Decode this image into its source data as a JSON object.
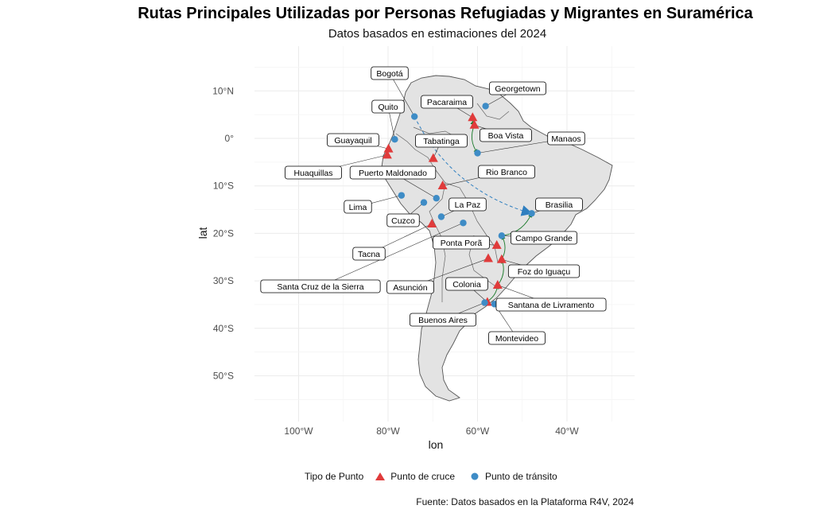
{
  "header": {
    "title": "Rutas Principales Utilizadas por Personas Refugiadas y Migrantes en Suramérica",
    "subtitle": "Datos basados en estimaciones del 2024"
  },
  "caption": "Fuente: Datos basados en la Plataforma R4V, 2024",
  "legend": {
    "title": "Tipo de Punto",
    "items": [
      {
        "label": "Punto de cruce",
        "shape": "triangle",
        "color": "#e03b3b"
      },
      {
        "label": "Punto de tránsito",
        "shape": "circle",
        "color": "#3e8cc6"
      }
    ]
  },
  "axes": {
    "xlabel": "lon",
    "ylabel": "lat",
    "xlim": [
      -110,
      -25
    ],
    "ylim": [
      -60,
      20
    ],
    "x_ticks": [
      {
        "value": -100,
        "label": "100°W"
      },
      {
        "value": -80,
        "label": "80°W"
      },
      {
        "value": -60,
        "label": "60°W"
      },
      {
        "value": -40,
        "label": "40°W"
      }
    ],
    "y_ticks": [
      {
        "value": 10,
        "label": "10°N"
      },
      {
        "value": 0,
        "label": "0°"
      },
      {
        "value": -10,
        "label": "10°S"
      },
      {
        "value": -20,
        "label": "20°S"
      },
      {
        "value": -30,
        "label": "30°S"
      },
      {
        "value": -40,
        "label": "40°S"
      },
      {
        "value": -50,
        "label": "50°S"
      }
    ],
    "grid": true
  },
  "colors": {
    "crossing": "#e03b3b",
    "transit": "#3e8cc6",
    "route_green": "#1a7a2a",
    "route_blue": "#2f7fc0",
    "land": "#e3e3e3",
    "border": "#555555"
  },
  "chart_data": {
    "type": "map",
    "points": [
      {
        "name": "Bogotá",
        "lon": -74.1,
        "lat": 4.6,
        "type": "transit"
      },
      {
        "name": "Quito",
        "lon": -78.5,
        "lat": -0.2,
        "type": "transit"
      },
      {
        "name": "Guayaquil",
        "lon": -79.9,
        "lat": -2.2,
        "type": "crossing"
      },
      {
        "name": "Huaquillas",
        "lon": -80.2,
        "lat": -3.5,
        "type": "crossing"
      },
      {
        "name": "Tabatinga",
        "lon": -69.9,
        "lat": -4.2,
        "type": "crossing"
      },
      {
        "name": "Puerto Maldonado",
        "lon": -69.2,
        "lat": -12.6,
        "type": "transit"
      },
      {
        "name": "Rio Branco",
        "lon": -67.8,
        "lat": -9.97,
        "type": "crossing"
      },
      {
        "name": "Lima",
        "lon": -77.0,
        "lat": -12.0,
        "type": "transit"
      },
      {
        "name": "Cuzco",
        "lon": -72.0,
        "lat": -13.5,
        "type": "transit"
      },
      {
        "name": "La Paz",
        "lon": -68.1,
        "lat": -16.5,
        "type": "transit"
      },
      {
        "name": "Tacna",
        "lon": -70.2,
        "lat": -18.0,
        "type": "crossing"
      },
      {
        "name": "Santa Cruz de la Sierra",
        "lon": -63.2,
        "lat": -17.8,
        "type": "transit"
      },
      {
        "name": "Pacaraima",
        "lon": -61.1,
        "lat": 4.4,
        "type": "crossing"
      },
      {
        "name": "Georgetown",
        "lon": -58.2,
        "lat": 6.8,
        "type": "transit"
      },
      {
        "name": "Boa Vista",
        "lon": -60.7,
        "lat": 2.8,
        "type": "crossing"
      },
      {
        "name": "Manaos",
        "lon": -60.0,
        "lat": -3.1,
        "type": "transit"
      },
      {
        "name": "Brasilia",
        "lon": -47.9,
        "lat": -15.8,
        "type": "transit"
      },
      {
        "name": "Campo Grande",
        "lon": -54.6,
        "lat": -20.5,
        "type": "transit"
      },
      {
        "name": "Ponta Porã",
        "lon": -55.7,
        "lat": -22.5,
        "type": "crossing"
      },
      {
        "name": "Asunción",
        "lon": -57.6,
        "lat": -25.3,
        "type": "crossing"
      },
      {
        "name": "Foz do Iguaçu",
        "lon": -54.6,
        "lat": -25.5,
        "type": "crossing"
      },
      {
        "name": "Colonia",
        "lon": -57.8,
        "lat": -34.5,
        "type": "crossing"
      },
      {
        "name": "Santana de Livramento",
        "lon": -55.5,
        "lat": -30.9,
        "type": "crossing"
      },
      {
        "name": "Buenos Aires",
        "lon": -58.4,
        "lat": -34.6,
        "type": "transit"
      },
      {
        "name": "Montevideo",
        "lon": -56.2,
        "lat": -34.9,
        "type": "transit"
      }
    ],
    "routes": [
      {
        "from": "Pacaraima",
        "to": "Boa Vista",
        "style": "solid-green"
      },
      {
        "from": "Boa Vista",
        "to": "Manaos",
        "style": "solid-green"
      },
      {
        "from": "Campo Grande",
        "to": "Brasilia",
        "style": "solid-green"
      },
      {
        "from": "Foz do Iguaçu",
        "to": "Campo Grande",
        "style": "solid-green"
      },
      {
        "from": "Santana de Livramento",
        "to": "Foz do Iguaçu",
        "style": "solid-green"
      },
      {
        "from": "Buenos Aires",
        "to": "Santana de Livramento",
        "style": "solid-green"
      },
      {
        "from": "Bogotá",
        "to": "Brasilia",
        "style": "dashed-blue"
      }
    ]
  }
}
